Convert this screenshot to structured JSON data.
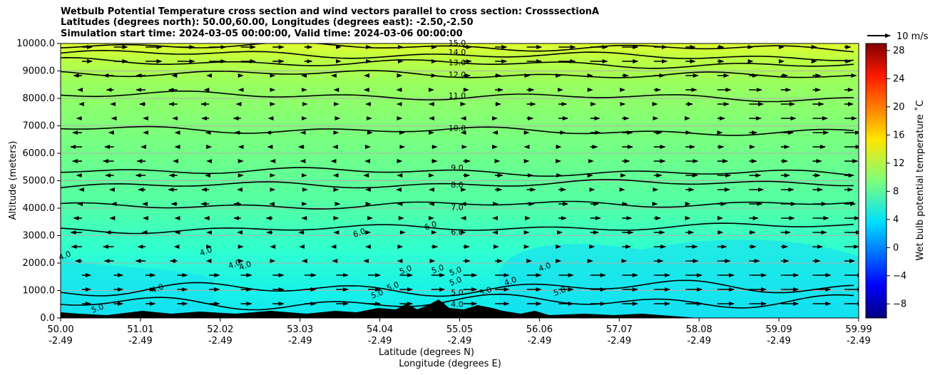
{
  "titles": [
    "Wetbulb Potential Temperature cross section and wind vectors parallel to cross section: CrosssectionA",
    "Latitudes (degrees north): 50.00,60.00, Longitudes (degrees east): -2.50,-2.50",
    "Simulation start time: 2024-03-05 00:00:00, Valid time: 2024-03-06 00:00:00"
  ],
  "chart_data": {
    "type": "heatmap",
    "title": "Wetbulb Potential Temperature cross section and wind vectors parallel to cross section: CrosssectionA",
    "xlabel": "Latitude (degrees N)",
    "xlabel2": "Longitude (degrees E)",
    "ylabel": "Altitude (meters)",
    "ylim": [
      0,
      10000
    ],
    "xlim": [
      50.0,
      59.99
    ],
    "yticks": [
      "0.0",
      "1000.0",
      "2000.0",
      "3000.0",
      "4000.0",
      "5000.0",
      "6000.0",
      "7000.0",
      "8000.0",
      "9000.0",
      "10000.0"
    ],
    "xticks_lat": [
      "50.00",
      "51.01",
      "52.02",
      "53.03",
      "54.04",
      "55.05",
      "56.06",
      "57.07",
      "58.08",
      "59.09",
      "59.99"
    ],
    "xticks_lon": [
      "-2.49",
      "-2.49",
      "-2.49",
      "-2.49",
      "-2.49",
      "-2.49",
      "-2.49",
      "-2.49",
      "-2.49",
      "-2.49",
      "-2.49"
    ],
    "colorbar": {
      "label": "Wet bulb potential temperature ˚C",
      "ticks": [
        "−8",
        "−4",
        "0",
        "4",
        "8",
        "12",
        "16",
        "20",
        "24",
        "28"
      ],
      "range": [
        -10,
        29
      ]
    },
    "quiver_key": "10 m/s",
    "grid": true,
    "contours": [
      {
        "label": "15.0",
        "alt": 9950
      },
      {
        "label": "14.0",
        "alt": 9650
      },
      {
        "label": "13.0",
        "alt": 9350
      },
      {
        "label": "12.0",
        "alt": 8950
      },
      {
        "label": "11.0",
        "alt": 8150
      },
      {
        "label": "10.0",
        "alt": 6900
      },
      {
        "label": "9.0",
        "alt": 5400
      },
      {
        "label": "8.0",
        "alt": 4800
      },
      {
        "label": "7.0",
        "alt": 4050
      },
      {
        "label": "6.0",
        "alt": 3200
      },
      {
        "label": "5.0",
        "alt": 1000
      },
      {
        "label": "4.0",
        "alt": 500
      }
    ],
    "contour_labels_extra": [
      "6.0",
      "6.0",
      "5.0",
      "5.0",
      "5.0",
      "5.0",
      "5.0",
      "5.0",
      "5.0",
      "4.0",
      "4.0",
      "4.0",
      "4.0",
      "4.0",
      "4.0",
      "5.0",
      "5.0",
      "4.0"
    ]
  }
}
